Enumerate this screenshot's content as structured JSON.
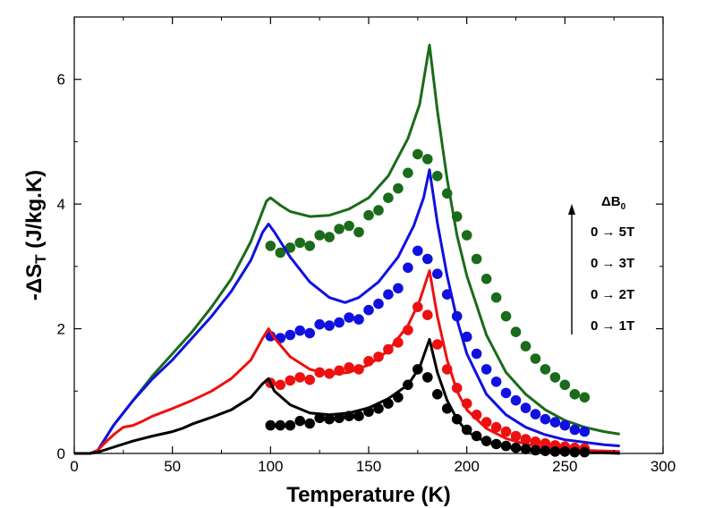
{
  "chart_data": {
    "type": "scatter",
    "xlabel": "Temperature (K)",
    "ylabel_main": "-ΔS",
    "ylabel_sub": "T",
    "ylabel_unit": " (J/kg.K)",
    "xlim": [
      0,
      300
    ],
    "ylim": [
      0,
      7
    ],
    "xticks": [
      0,
      50,
      100,
      150,
      200,
      250,
      300
    ],
    "yticks": [
      0,
      2,
      4,
      6
    ],
    "grid": false,
    "legend": {
      "title_main": "ΔB",
      "title_sub": "0",
      "labels": [
        "0 → 5T",
        "0 → 3T",
        "0 → 2T",
        "0 → 1T"
      ],
      "arrow": "up"
    },
    "series": [
      {
        "color": "#1a6b1a",
        "line": [
          [
            0,
            0
          ],
          [
            8,
            0
          ],
          [
            12,
            0.05
          ],
          [
            15,
            0.2
          ],
          [
            20,
            0.45
          ],
          [
            30,
            0.85
          ],
          [
            40,
            1.25
          ],
          [
            50,
            1.6
          ],
          [
            60,
            1.95
          ],
          [
            70,
            2.35
          ],
          [
            80,
            2.8
          ],
          [
            90,
            3.4
          ],
          [
            98,
            4.05
          ],
          [
            100,
            4.1
          ],
          [
            105,
            3.98
          ],
          [
            110,
            3.88
          ],
          [
            120,
            3.8
          ],
          [
            130,
            3.82
          ],
          [
            140,
            3.92
          ],
          [
            150,
            4.1
          ],
          [
            160,
            4.45
          ],
          [
            170,
            5.05
          ],
          [
            176,
            5.6
          ],
          [
            181,
            6.55
          ],
          [
            185,
            5.5
          ],
          [
            190,
            4.4
          ],
          [
            195,
            3.5
          ],
          [
            200,
            2.85
          ],
          [
            210,
            1.9
          ],
          [
            220,
            1.3
          ],
          [
            230,
            0.95
          ],
          [
            240,
            0.7
          ],
          [
            250,
            0.53
          ],
          [
            260,
            0.42
          ],
          [
            270,
            0.35
          ],
          [
            278,
            0.31
          ]
        ],
        "points": [
          [
            100,
            3.33
          ],
          [
            105,
            3.22
          ],
          [
            110,
            3.3
          ],
          [
            115,
            3.38
          ],
          [
            120,
            3.33
          ],
          [
            125,
            3.5
          ],
          [
            130,
            3.47
          ],
          [
            135,
            3.6
          ],
          [
            140,
            3.65
          ],
          [
            145,
            3.55
          ],
          [
            150,
            3.82
          ],
          [
            155,
            3.9
          ],
          [
            160,
            4.1
          ],
          [
            165,
            4.25
          ],
          [
            170,
            4.5
          ],
          [
            175,
            4.8
          ],
          [
            180,
            4.72
          ],
          [
            185,
            4.45
          ],
          [
            190,
            4.17
          ],
          [
            195,
            3.8
          ],
          [
            200,
            3.5
          ],
          [
            205,
            3.12
          ],
          [
            210,
            2.8
          ],
          [
            215,
            2.5
          ],
          [
            220,
            2.2
          ],
          [
            225,
            1.95
          ],
          [
            230,
            1.72
          ],
          [
            235,
            1.52
          ],
          [
            240,
            1.35
          ],
          [
            245,
            1.22
          ],
          [
            250,
            1.1
          ],
          [
            255,
            0.95
          ],
          [
            260,
            0.9
          ]
        ]
      },
      {
        "color": "#1010e0",
        "line": [
          [
            0,
            0
          ],
          [
            8,
            0
          ],
          [
            12,
            0.05
          ],
          [
            15,
            0.2
          ],
          [
            20,
            0.45
          ],
          [
            30,
            0.85
          ],
          [
            40,
            1.2
          ],
          [
            50,
            1.5
          ],
          [
            60,
            1.85
          ],
          [
            70,
            2.2
          ],
          [
            80,
            2.6
          ],
          [
            90,
            3.1
          ],
          [
            96,
            3.55
          ],
          [
            99,
            3.68
          ],
          [
            102,
            3.55
          ],
          [
            110,
            3.15
          ],
          [
            120,
            2.75
          ],
          [
            130,
            2.5
          ],
          [
            138,
            2.42
          ],
          [
            145,
            2.5
          ],
          [
            155,
            2.75
          ],
          [
            165,
            3.15
          ],
          [
            173,
            3.65
          ],
          [
            178,
            4.1
          ],
          [
            181,
            4.55
          ],
          [
            185,
            3.7
          ],
          [
            190,
            2.85
          ],
          [
            195,
            2.15
          ],
          [
            200,
            1.6
          ],
          [
            210,
            0.95
          ],
          [
            220,
            0.62
          ],
          [
            230,
            0.42
          ],
          [
            240,
            0.3
          ],
          [
            250,
            0.22
          ],
          [
            260,
            0.18
          ],
          [
            270,
            0.14
          ],
          [
            278,
            0.12
          ]
        ],
        "points": [
          [
            100,
            1.88
          ],
          [
            105,
            1.85
          ],
          [
            110,
            1.9
          ],
          [
            115,
            1.97
          ],
          [
            120,
            1.93
          ],
          [
            125,
            2.07
          ],
          [
            130,
            2.05
          ],
          [
            135,
            2.1
          ],
          [
            140,
            2.18
          ],
          [
            145,
            2.15
          ],
          [
            150,
            2.3
          ],
          [
            155,
            2.4
          ],
          [
            160,
            2.55
          ],
          [
            165,
            2.65
          ],
          [
            170,
            2.98
          ],
          [
            175,
            3.25
          ],
          [
            180,
            3.12
          ],
          [
            185,
            2.88
          ],
          [
            190,
            2.55
          ],
          [
            195,
            2.2
          ],
          [
            200,
            1.87
          ],
          [
            205,
            1.6
          ],
          [
            210,
            1.35
          ],
          [
            215,
            1.15
          ],
          [
            220,
            0.97
          ],
          [
            225,
            0.85
          ],
          [
            230,
            0.73
          ],
          [
            235,
            0.63
          ],
          [
            240,
            0.55
          ],
          [
            245,
            0.5
          ],
          [
            250,
            0.45
          ],
          [
            255,
            0.38
          ],
          [
            260,
            0.35
          ]
        ]
      },
      {
        "color": "#ee1010",
        "line": [
          [
            0,
            0
          ],
          [
            8,
            0
          ],
          [
            12,
            0.05
          ],
          [
            15,
            0.15
          ],
          [
            20,
            0.3
          ],
          [
            25,
            0.42
          ],
          [
            30,
            0.45
          ],
          [
            35,
            0.52
          ],
          [
            40,
            0.6
          ],
          [
            50,
            0.72
          ],
          [
            60,
            0.85
          ],
          [
            70,
            1.0
          ],
          [
            80,
            1.2
          ],
          [
            90,
            1.5
          ],
          [
            96,
            1.85
          ],
          [
            99,
            2.0
          ],
          [
            102,
            1.85
          ],
          [
            110,
            1.55
          ],
          [
            120,
            1.35
          ],
          [
            130,
            1.27
          ],
          [
            140,
            1.3
          ],
          [
            150,
            1.42
          ],
          [
            160,
            1.65
          ],
          [
            170,
            2.05
          ],
          [
            176,
            2.45
          ],
          [
            181,
            2.93
          ],
          [
            185,
            2.2
          ],
          [
            190,
            1.5
          ],
          [
            195,
            1.0
          ],
          [
            200,
            0.7
          ],
          [
            210,
            0.4
          ],
          [
            220,
            0.24
          ],
          [
            230,
            0.15
          ],
          [
            240,
            0.1
          ],
          [
            250,
            0.07
          ],
          [
            260,
            0.05
          ],
          [
            270,
            0.04
          ],
          [
            278,
            0.03
          ]
        ],
        "points": [
          [
            100,
            1.13
          ],
          [
            105,
            1.1
          ],
          [
            110,
            1.17
          ],
          [
            115,
            1.22
          ],
          [
            120,
            1.18
          ],
          [
            125,
            1.3
          ],
          [
            130,
            1.28
          ],
          [
            135,
            1.33
          ],
          [
            140,
            1.38
          ],
          [
            145,
            1.35
          ],
          [
            150,
            1.48
          ],
          [
            155,
            1.55
          ],
          [
            160,
            1.67
          ],
          [
            165,
            1.78
          ],
          [
            170,
            1.98
          ],
          [
            175,
            2.35
          ],
          [
            180,
            2.22
          ],
          [
            185,
            1.75
          ],
          [
            190,
            1.35
          ],
          [
            195,
            1.05
          ],
          [
            200,
            0.8
          ],
          [
            205,
            0.62
          ],
          [
            210,
            0.5
          ],
          [
            215,
            0.42
          ],
          [
            220,
            0.35
          ],
          [
            225,
            0.28
          ],
          [
            230,
            0.23
          ],
          [
            235,
            0.19
          ],
          [
            240,
            0.16
          ],
          [
            245,
            0.13
          ],
          [
            250,
            0.11
          ],
          [
            255,
            0.09
          ],
          [
            260,
            0.08
          ]
        ]
      },
      {
        "color": "#000000",
        "line": [
          [
            0,
            0
          ],
          [
            8,
            0
          ],
          [
            12,
            0.02
          ],
          [
            15,
            0.05
          ],
          [
            20,
            0.1
          ],
          [
            30,
            0.2
          ],
          [
            40,
            0.28
          ],
          [
            50,
            0.35
          ],
          [
            55,
            0.4
          ],
          [
            60,
            0.47
          ],
          [
            70,
            0.58
          ],
          [
            80,
            0.7
          ],
          [
            90,
            0.9
          ],
          [
            96,
            1.12
          ],
          [
            99,
            1.2
          ],
          [
            102,
            1.0
          ],
          [
            110,
            0.78
          ],
          [
            120,
            0.65
          ],
          [
            130,
            0.62
          ],
          [
            140,
            0.65
          ],
          [
            150,
            0.73
          ],
          [
            160,
            0.88
          ],
          [
            170,
            1.1
          ],
          [
            176,
            1.38
          ],
          [
            181,
            1.83
          ],
          [
            185,
            1.3
          ],
          [
            190,
            0.85
          ],
          [
            195,
            0.55
          ],
          [
            200,
            0.35
          ],
          [
            210,
            0.18
          ],
          [
            220,
            0.1
          ],
          [
            230,
            0.06
          ],
          [
            240,
            0.04
          ],
          [
            250,
            0.02
          ],
          [
            260,
            0.01
          ],
          [
            270,
            0.01
          ],
          [
            278,
            0.0
          ]
        ],
        "points": [
          [
            100,
            0.45
          ],
          [
            105,
            0.45
          ],
          [
            110,
            0.45
          ],
          [
            115,
            0.52
          ],
          [
            120,
            0.48
          ],
          [
            125,
            0.57
          ],
          [
            130,
            0.55
          ],
          [
            135,
            0.57
          ],
          [
            140,
            0.6
          ],
          [
            145,
            0.6
          ],
          [
            150,
            0.67
          ],
          [
            155,
            0.72
          ],
          [
            160,
            0.8
          ],
          [
            165,
            0.9
          ],
          [
            170,
            1.1
          ],
          [
            175,
            1.35
          ],
          [
            180,
            1.22
          ],
          [
            185,
            0.95
          ],
          [
            190,
            0.72
          ],
          [
            195,
            0.55
          ],
          [
            200,
            0.38
          ],
          [
            205,
            0.28
          ],
          [
            210,
            0.2
          ],
          [
            215,
            0.15
          ],
          [
            220,
            0.12
          ],
          [
            225,
            0.09
          ],
          [
            230,
            0.07
          ],
          [
            235,
            0.05
          ],
          [
            240,
            0.04
          ],
          [
            245,
            0.03
          ],
          [
            250,
            0.03
          ],
          [
            255,
            0.02
          ],
          [
            260,
            0.02
          ]
        ]
      }
    ]
  }
}
